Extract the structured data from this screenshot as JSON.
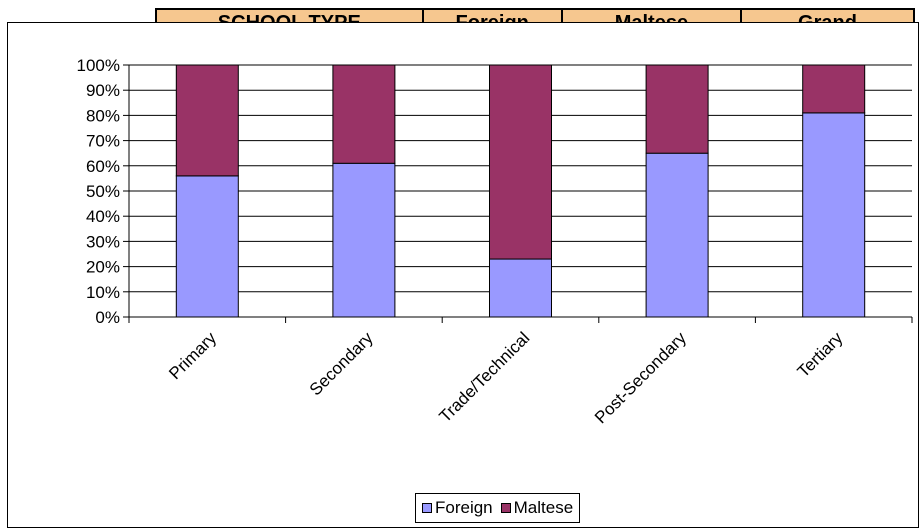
{
  "background_table": {
    "headers": [
      "SCHOOL TYPE",
      "Foreign",
      "Maltese",
      "Grand"
    ]
  },
  "chart_data": {
    "type": "bar",
    "stacked": "percent",
    "categories": [
      "Primary",
      "Secondary",
      "Trade/Technical",
      "Post-Secondary",
      "Tertiary"
    ],
    "series": [
      {
        "name": "Foreign",
        "color": "#9999ff",
        "values": [
          56,
          61,
          23,
          65,
          81
        ]
      },
      {
        "name": "Maltese",
        "color": "#993366",
        "values": [
          44,
          39,
          77,
          35,
          19
        ]
      }
    ],
    "y_ticks": [
      "0%",
      "10%",
      "20%",
      "30%",
      "40%",
      "50%",
      "60%",
      "70%",
      "80%",
      "90%",
      "100%"
    ],
    "ylim": [
      0,
      100
    ],
    "grid": true,
    "legend_position": "bottom"
  }
}
